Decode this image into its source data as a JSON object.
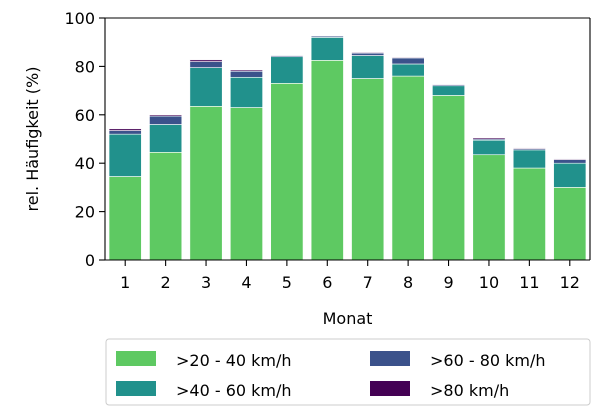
{
  "chart_data": {
    "type": "bar",
    "stacked": true,
    "title": "",
    "xlabel": "Monat",
    "ylabel": "rel. Häufigkeit (%)",
    "ylim": [
      0,
      100
    ],
    "yticks": [
      0,
      20,
      40,
      60,
      80,
      100
    ],
    "categories": [
      "1",
      "2",
      "3",
      "4",
      "5",
      "6",
      "7",
      "8",
      "9",
      "10",
      "11",
      "12"
    ],
    "series": [
      {
        "name": ">20 - 40 km/h",
        "color": "#5ec962",
        "values": [
          34.5,
          44.5,
          63.5,
          63.0,
          73.0,
          82.5,
          75.0,
          76.0,
          68.0,
          43.5,
          38.0,
          30.0
        ]
      },
      {
        "name": ">40 - 60 km/h",
        "color": "#21918c",
        "values": [
          17.5,
          11.5,
          16.0,
          12.5,
          11.0,
          9.5,
          9.5,
          5.0,
          4.0,
          6.0,
          7.5,
          10.0
        ]
      },
      {
        "name": ">60 - 80 km/h",
        "color": "#3b528b",
        "values": [
          1.5,
          3.5,
          2.5,
          2.5,
          0.5,
          0.5,
          1.0,
          2.5,
          0.5,
          0.5,
          0.5,
          1.5
        ]
      },
      {
        "name": ">80 km/h",
        "color": "#440154",
        "values": [
          0.7,
          0.5,
          0.7,
          0.5,
          0.2,
          0.2,
          0.3,
          0.3,
          0.2,
          0.5,
          0.3,
          0.3
        ]
      }
    ],
    "grid": false,
    "legend_position": "bottom"
  }
}
